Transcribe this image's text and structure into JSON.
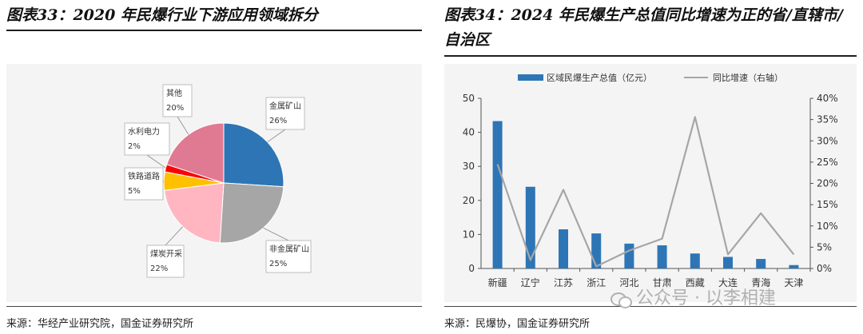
{
  "left": {
    "title": "图表33：2020 年民爆行业下游应用领域拆分",
    "source": "来源：华经产业研究院，国金证券研究所"
  },
  "right": {
    "title": "图表34：2024 年民爆生产总值同比增速为正的省/直辖市/自治区",
    "source": "来源：民爆协，国金证券研究所"
  },
  "watermark": "公众号 · 以李相建",
  "colors": {
    "pie": [
      "#2e75b6",
      "#a6a6a6",
      "#ffb6c1",
      "#ffc000",
      "#ff0000",
      "#e07a93"
    ],
    "bar": "#2e75b6",
    "line": "#a6a6a6"
  },
  "chart_data": [
    {
      "type": "pie",
      "title": "2020 年民爆行业下游应用领域拆分",
      "labels": [
        "金属矿山",
        "非金属矿山",
        "煤炭开采",
        "铁路道路",
        "水利电力",
        "其他"
      ],
      "values": [
        26,
        25,
        22,
        5,
        2,
        20
      ],
      "value_labels": [
        "26%",
        "25%",
        "22%",
        "5%",
        "2%",
        "20%"
      ],
      "unit": "%"
    },
    {
      "type": "bar",
      "title": "2024 年民爆生产总值同比增速为正的省/直辖市/自治区",
      "categories": [
        "新疆",
        "辽宁",
        "江苏",
        "浙江",
        "河北",
        "甘肃",
        "西藏",
        "大连",
        "青海",
        "天津"
      ],
      "series": [
        {
          "name": "区域民爆生产总值（亿元）",
          "type": "bar",
          "axis": "left",
          "values": [
            43.3,
            24.0,
            11.5,
            10.3,
            7.3,
            6.8,
            4.4,
            3.4,
            2.8,
            1.0
          ]
        },
        {
          "name": "同比增速（右轴）",
          "type": "line",
          "axis": "right",
          "values": [
            24.5,
            2.0,
            18.5,
            0.5,
            4.2,
            7.0,
            35.6,
            3.3,
            13.0,
            3.3
          ]
        }
      ],
      "ylim_left": [
        0,
        50
      ],
      "yticks_left": [
        "0",
        "10",
        "20",
        "30",
        "40",
        "50"
      ],
      "ylim_right": [
        0,
        40
      ],
      "yticks_right": [
        "0%",
        "5%",
        "10%",
        "15%",
        "20%",
        "25%",
        "30%",
        "35%",
        "40%"
      ],
      "legend_position": "top"
    }
  ]
}
